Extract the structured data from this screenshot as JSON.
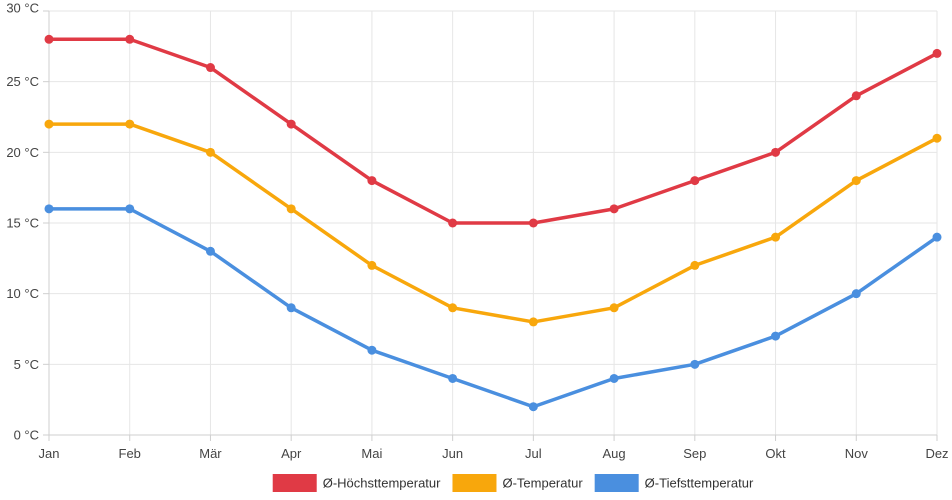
{
  "chart_data": {
    "type": "line",
    "title": "",
    "xlabel": "",
    "ylabel": "",
    "unit": "°C",
    "categories": [
      "Jan",
      "Feb",
      "Mär",
      "Apr",
      "Mai",
      "Jun",
      "Jul",
      "Aug",
      "Sep",
      "Okt",
      "Nov",
      "Dez"
    ],
    "ylim": [
      0,
      30
    ],
    "yticks": [
      0,
      5,
      10,
      15,
      20,
      25,
      30
    ],
    "ytick_labels": [
      "0 °C",
      "5 °C",
      "10 °C",
      "15 °C",
      "20 °C",
      "25 °C",
      "30 °C"
    ],
    "grid": true,
    "legend_position": "bottom-center",
    "series": [
      {
        "name": "Ø-Höchsttemperatur",
        "color": "#e03a45",
        "values": [
          28,
          28,
          26,
          22,
          18,
          15,
          15,
          16,
          18,
          20,
          24,
          27
        ]
      },
      {
        "name": "Ø-Temperatur",
        "color": "#f8a70c",
        "values": [
          22,
          22,
          20,
          16,
          12,
          9,
          8,
          9,
          12,
          14,
          18,
          21
        ]
      },
      {
        "name": "Ø-Tiefsttemperatur",
        "color": "#4a8fdf",
        "values": [
          16,
          16,
          13,
          9,
          6,
          4,
          2,
          4,
          5,
          7,
          10,
          14
        ]
      }
    ]
  }
}
